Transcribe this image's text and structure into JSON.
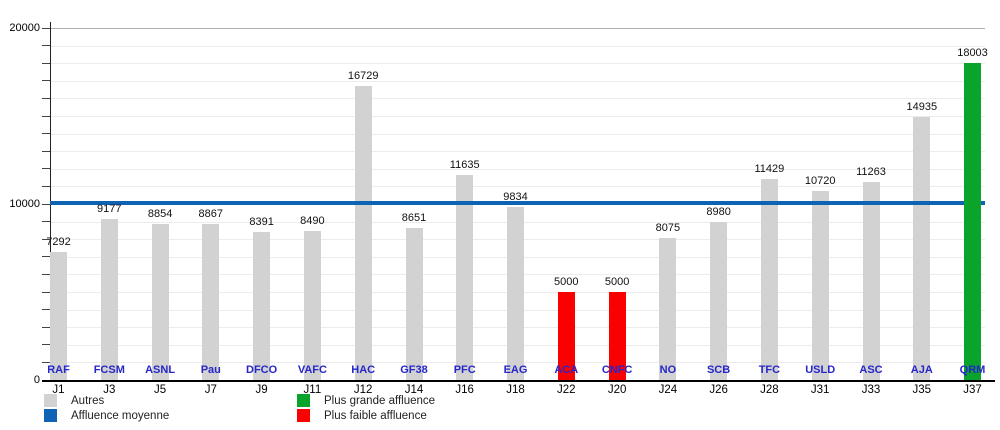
{
  "chart_data": {
    "type": "bar",
    "title": "",
    "xlabel": "",
    "ylabel": "",
    "ylim": [
      0,
      20000
    ],
    "ytick_values": [
      0,
      10000,
      20000
    ],
    "ytick_labels": [
      "0",
      "10000",
      "20000"
    ],
    "minor_grid_step": 1000,
    "grid": "horizontal-minor-on",
    "categories": [
      "J1",
      "J3",
      "J5",
      "J7",
      "J9",
      "J11",
      "J12",
      "J14",
      "J16",
      "J18",
      "J22",
      "J20",
      "J24",
      "J26",
      "J28",
      "J31",
      "J33",
      "J35",
      "J37"
    ],
    "bar_labels": [
      "RAF",
      "FCSM",
      "ASNL",
      "Pau",
      "DFCO",
      "VAFC",
      "HAC",
      "GF38",
      "PFC",
      "EAG",
      "ACA",
      "CNFC",
      "NO",
      "SCB",
      "TFC",
      "USLD",
      "ASC",
      "AJA",
      "QRM"
    ],
    "values": [
      7292,
      9177,
      8854,
      8867,
      8391,
      8490,
      16729,
      8651,
      11635,
      9834,
      5000,
      5000,
      8075,
      8980,
      11429,
      10720,
      11263,
      14935,
      18003
    ],
    "bar_types": [
      "autres",
      "autres",
      "autres",
      "autres",
      "autres",
      "autres",
      "autres",
      "autres",
      "autres",
      "autres",
      "faible",
      "faible",
      "autres",
      "autres",
      "autres",
      "autres",
      "autres",
      "autres",
      "grande"
    ],
    "colors": {
      "autres": "#d2d2d2",
      "grande": "#0aa32c",
      "faible": "#fb0000",
      "average_line": "#0e63b5",
      "team_label": "#2626c9"
    },
    "average_line": {
      "value": 10070
    },
    "legend": {
      "position": "bottom",
      "items": [
        {
          "label": "Autres",
          "color": "#d2d2d2",
          "type": "autres"
        },
        {
          "label": "Affluence moyenne",
          "color": "#0e63b5",
          "type": "average"
        },
        {
          "label": "Plus grande affluence",
          "color": "#0aa32c",
          "type": "grande"
        },
        {
          "label": "Plus faible affluence",
          "color": "#fb0000",
          "type": "faible"
        }
      ]
    }
  }
}
